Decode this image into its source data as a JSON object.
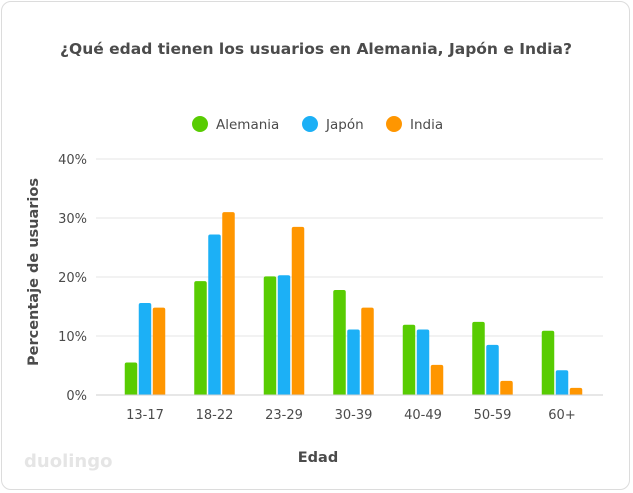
{
  "chart_data": {
    "type": "bar",
    "title": "¿Qué edad tienen los usuarios en Alemania, Japón e India?",
    "xlabel": "Edad",
    "ylabel": "Percentaje de usuarios",
    "categories": [
      "13-17",
      "18-22",
      "23-29",
      "30-39",
      "40-49",
      "50-59",
      "60+"
    ],
    "series": [
      {
        "name": "Alemania",
        "color": "#58cc02",
        "values": [
          5.5,
          19.3,
          20.1,
          17.8,
          11.9,
          12.4,
          10.9
        ]
      },
      {
        "name": "Japón",
        "color": "#1cb0f6",
        "values": [
          15.6,
          27.2,
          20.3,
          11.1,
          11.1,
          8.5,
          4.2
        ]
      },
      {
        "name": "India",
        "color": "#ff9600",
        "values": [
          14.8,
          31.0,
          28.5,
          14.8,
          5.1,
          2.4,
          1.2
        ]
      }
    ],
    "ylim": [
      0,
      40
    ],
    "yticks": [
      "0%",
      "10%",
      "20%",
      "30%",
      "40%"
    ],
    "grid": true,
    "legend_position": "top-center"
  },
  "branding": {
    "logo_text": "duolingo"
  }
}
